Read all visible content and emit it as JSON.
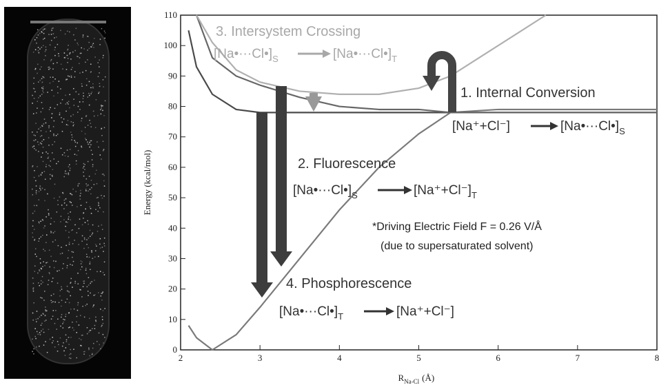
{
  "chart_data": {
    "type": "line",
    "ylabel": "Energy (kcal/mol)",
    "xlabel": {
      "text": "R",
      "sub": "Na-Cl",
      "unit": "(Å)"
    },
    "x": [
      2.1,
      2.2,
      2.4,
      2.7,
      3,
      3.5,
      4,
      4.5,
      5,
      5.4,
      6,
      6.6,
      7,
      8
    ],
    "series": [
      {
        "color": "#7a7a7a",
        "values": [
          8,
          4,
          0,
          5,
          14,
          30,
          46,
          60,
          71,
          78,
          79,
          79,
          79,
          79
        ]
      },
      {
        "color": "#4a4a4a",
        "values": [
          105,
          93,
          84,
          79,
          78,
          78,
          78,
          78,
          78,
          78,
          78,
          78,
          78,
          78
        ]
      },
      {
        "color": "#666666",
        "values": [
          null,
          110,
          96,
          90,
          87,
          83,
          80,
          79,
          79,
          78,
          78,
          78,
          78,
          78
        ]
      },
      {
        "color": "#b0b0b0",
        "values": [
          null,
          110,
          101,
          92,
          88,
          85,
          84,
          84,
          86,
          90,
          100,
          110,
          null,
          null
        ]
      }
    ],
    "xlim": [
      2,
      8
    ],
    "xticks": [
      2,
      3,
      4,
      5,
      6,
      7,
      8
    ],
    "ylim": [
      0,
      110
    ],
    "yticks": [
      0,
      10,
      20,
      30,
      40,
      50,
      60,
      70,
      80,
      90,
      100,
      110
    ],
    "annotations": [
      {
        "title": "3. Intersystem Crossing",
        "left": "[Na•···Cl•]",
        "left_sub": "S",
        "right": "[Na•···Cl•]",
        "right_sub": "T",
        "color": "#a8a8a8"
      },
      {
        "title": "1. Internal Conversion",
        "left": "[Na⁺+Cl⁻]",
        "left_sub": "",
        "right": "[Na•···Cl•]",
        "right_sub": "S",
        "color": "#333333"
      },
      {
        "title": "2. Fluorescence",
        "left": "[Na•···Cl•]",
        "left_sub": "S",
        "right": "[Na⁺+Cl⁻]",
        "right_sub": "T",
        "color": "#333333"
      },
      {
        "title": "4. Phosphorescence",
        "left": "[Na•···Cl•]",
        "left_sub": "T",
        "right": "[Na⁺+Cl⁻]",
        "right_sub": "",
        "color": "#333333"
      }
    ],
    "notes": [
      "*Driving Electric Field F = 0.26 V/Å",
      "(due to supersaturated solvent)"
    ]
  }
}
